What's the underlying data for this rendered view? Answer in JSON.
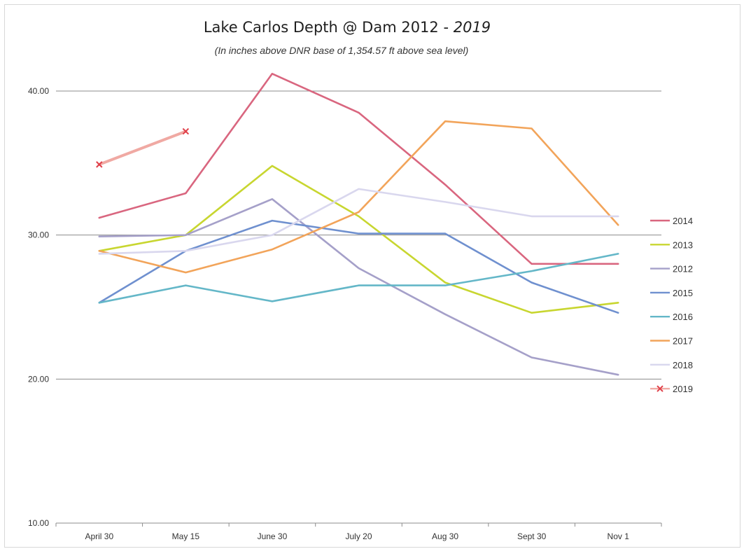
{
  "chart_data": {
    "type": "line",
    "title": "Lake Carlos Depth @ Dam 2012 - ",
    "title_year": "2019",
    "subtitle": "(In inches above DNR base of 1,354.57 ft above sea level)",
    "xlabel": "",
    "ylabel": "",
    "categories": [
      "April 30",
      "May 15",
      "June 30",
      "July 20",
      "Aug 30",
      "Sept 30",
      "Nov 1"
    ],
    "yticks": [
      "10.00",
      "20.00",
      "30.00",
      "40.00"
    ],
    "ylim": [
      10,
      40
    ],
    "grid": true,
    "legend_position": "right",
    "series": [
      {
        "name": "2014",
        "color": "#d9667f",
        "values": [
          31.2,
          32.9,
          41.2,
          38.5,
          33.5,
          28.0,
          28.0
        ]
      },
      {
        "name": "2013",
        "color": "#c8d630",
        "values": [
          28.9,
          30.0,
          34.8,
          31.3,
          26.7,
          24.6,
          25.3
        ]
      },
      {
        "name": "2012",
        "color": "#a5a0c9",
        "values": [
          29.9,
          30.0,
          32.5,
          27.7,
          24.5,
          21.5,
          20.3
        ]
      },
      {
        "name": "2015",
        "color": "#6f90cf",
        "values": [
          25.3,
          28.9,
          31.0,
          30.1,
          30.1,
          26.7,
          24.6
        ]
      },
      {
        "name": "2016",
        "color": "#64b7c8",
        "values": [
          25.3,
          26.5,
          25.4,
          26.5,
          26.5,
          27.5,
          28.7
        ]
      },
      {
        "name": "2017",
        "color": "#f2a45a",
        "values": [
          28.9,
          27.4,
          29.0,
          31.6,
          37.9,
          37.4,
          30.7
        ]
      },
      {
        "name": "2018",
        "color": "#d9d7ee",
        "values": [
          28.7,
          28.9,
          30.0,
          33.2,
          32.3,
          31.3,
          31.3
        ]
      },
      {
        "name": "2019",
        "color": "#f0a9a3",
        "marker": "x",
        "markerColor": "#e0404a",
        "values": [
          34.9,
          37.2,
          null,
          null,
          null,
          null,
          null
        ]
      }
    ]
  }
}
